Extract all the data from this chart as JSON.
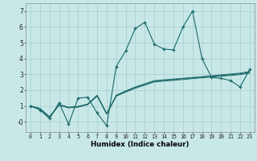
{
  "xlabel": "Humidex (Indice chaleur)",
  "bg_color": "#c8e8e8",
  "grid_color": "#a8cccc",
  "line_color": "#1a6868",
  "xlim": [
    -0.5,
    23.5
  ],
  "ylim": [
    -0.65,
    7.5
  ],
  "xticks": [
    0,
    1,
    2,
    3,
    4,
    5,
    6,
    7,
    8,
    9,
    10,
    11,
    12,
    13,
    14,
    15,
    16,
    17,
    18,
    19,
    20,
    21,
    22,
    23
  ],
  "yticks": [
    7,
    6,
    5,
    4,
    3,
    2,
    1,
    0
  ],
  "ytick_labels": [
    "7",
    "6",
    "5",
    "4",
    "3",
    "2",
    "1",
    "-0"
  ],
  "main_y": [
    1.0,
    0.75,
    0.2,
    1.2,
    -0.15,
    1.5,
    1.55,
    0.55,
    -0.25,
    3.5,
    4.5,
    5.9,
    6.3,
    4.9,
    4.6,
    4.55,
    6.0,
    7.0,
    4.0,
    2.8,
    2.75,
    2.6,
    2.2,
    3.3
  ],
  "line2_y": [
    1.0,
    0.82,
    0.28,
    1.05,
    0.88,
    0.93,
    1.08,
    1.62,
    0.48,
    1.62,
    1.88,
    2.12,
    2.32,
    2.52,
    2.57,
    2.62,
    2.67,
    2.73,
    2.78,
    2.83,
    2.88,
    2.93,
    2.98,
    3.08
  ],
  "line3_y": [
    1.0,
    0.83,
    0.3,
    1.07,
    0.9,
    0.95,
    1.1,
    1.65,
    0.5,
    1.65,
    1.92,
    2.17,
    2.37,
    2.57,
    2.62,
    2.67,
    2.72,
    2.78,
    2.83,
    2.88,
    2.93,
    2.98,
    3.03,
    3.13
  ],
  "line4_y": [
    1.0,
    0.84,
    0.32,
    1.09,
    0.92,
    0.97,
    1.12,
    1.68,
    0.52,
    1.68,
    1.95,
    2.2,
    2.4,
    2.6,
    2.65,
    2.7,
    2.75,
    2.8,
    2.85,
    2.91,
    2.97,
    3.02,
    3.08,
    3.18
  ]
}
